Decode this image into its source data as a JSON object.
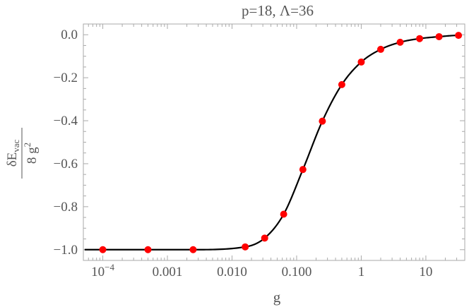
{
  "chart_data": {
    "type": "scatter",
    "title": "p=18, Λ=36",
    "xlabel": "g",
    "ylabel": {
      "numerator_main": "δE",
      "numerator_sub": "vac",
      "denominator_main": "8 g",
      "denominator_sup": "2"
    },
    "x_scale": "log",
    "xlim": [
      5e-05,
      40
    ],
    "ylim": [
      -1.05,
      0.05
    ],
    "x_ticks": [
      {
        "value": 0.0001,
        "label_base": "10",
        "label_sup": "−4"
      },
      {
        "value": 0.001,
        "label": "0.001"
      },
      {
        "value": 0.01,
        "label": "0.010"
      },
      {
        "value": 0.1,
        "label": "0.100"
      },
      {
        "value": 1,
        "label": "1"
      },
      {
        "value": 10,
        "label": "10"
      }
    ],
    "y_ticks": [
      {
        "value": 0.0,
        "label": "0.0"
      },
      {
        "value": -0.2,
        "label": "−0.2"
      },
      {
        "value": -0.4,
        "label": "−0.4"
      },
      {
        "value": -0.6,
        "label": "−0.6"
      },
      {
        "value": -0.8,
        "label": "−0.8"
      },
      {
        "value": -1.0,
        "label": "−1.0"
      }
    ],
    "grid": false,
    "legend": "none",
    "series": [
      {
        "kind": "points",
        "color": "#ff0000",
        "points": [
          {
            "x": 0.0001,
            "y": -1.0
          },
          {
            "x": 0.0005,
            "y": -1.0
          },
          {
            "x": 0.0025,
            "y": -1.0
          },
          {
            "x": 0.016,
            "y": -0.987
          },
          {
            "x": 0.032,
            "y": -0.946
          },
          {
            "x": 0.063,
            "y": -0.835
          },
          {
            "x": 0.125,
            "y": -0.627
          },
          {
            "x": 0.25,
            "y": -0.402
          },
          {
            "x": 0.5,
            "y": -0.232
          },
          {
            "x": 1.0,
            "y": -0.127
          },
          {
            "x": 2.0,
            "y": -0.068
          },
          {
            "x": 4.0,
            "y": -0.035
          },
          {
            "x": 8.0,
            "y": -0.018
          },
          {
            "x": 16.0,
            "y": -0.009
          },
          {
            "x": 32.0,
            "y": -0.003
          }
        ]
      },
      {
        "kind": "curve",
        "color": "#000000"
      }
    ]
  }
}
